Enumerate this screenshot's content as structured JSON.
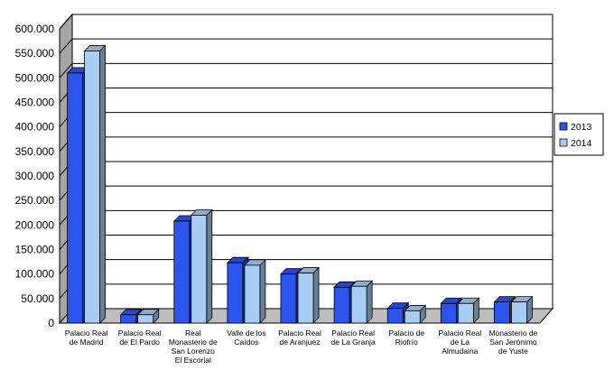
{
  "chart_data": {
    "type": "bar",
    "categories": [
      [
        "Palacio Real",
        "de Madrid"
      ],
      [
        "Palacio Real",
        "de El Pardo"
      ],
      [
        "Real",
        "Monasterio de",
        "San Lorenzo",
        "El Escorial"
      ],
      [
        "Valle de los",
        "Caídos"
      ],
      [
        "Palacio Real",
        "de Aranjuez"
      ],
      [
        "Palacio Real",
        "de La Granja"
      ],
      [
        "Palacio de",
        "Riofrío"
      ],
      [
        "Palacio Real",
        "de La",
        "Almudaina"
      ],
      [
        "Monasterio de",
        "San Jerónimo",
        "de Yuste"
      ]
    ],
    "series": [
      {
        "name": "2013",
        "values": [
          510000,
          17000,
          208000,
          123000,
          100000,
          73000,
          30000,
          40000,
          43000
        ],
        "color": "#2c55f0"
      },
      {
        "name": "2014",
        "values": [
          555000,
          17000,
          220000,
          118000,
          102000,
          75000,
          25000,
          40000,
          43000
        ],
        "color": "#a8cdf5"
      }
    ],
    "ylim": [
      0,
      600000
    ],
    "yticks": [
      0,
      50000,
      100000,
      150000,
      200000,
      250000,
      300000,
      350000,
      400000,
      450000,
      500000,
      550000,
      600000
    ],
    "ytick_labels": [
      "0",
      "50.000",
      "100.000",
      "150.000",
      "200.000",
      "250.000",
      "300.000",
      "350.000",
      "400.000",
      "450.000",
      "500.000",
      "550.000",
      "600.000"
    ],
    "grid": true,
    "legend_position": "right"
  }
}
